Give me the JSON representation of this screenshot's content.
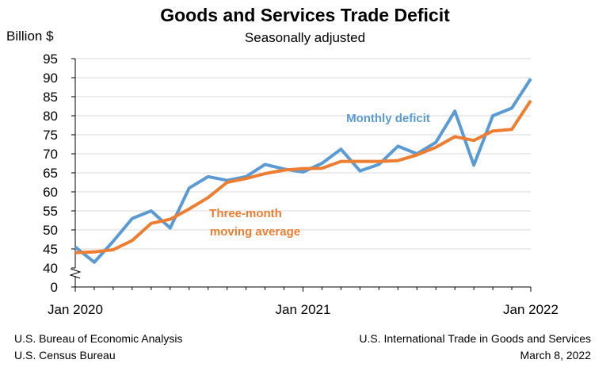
{
  "header": {
    "title": "Goods and Services Trade Deficit",
    "subtitle": "Seasonally adjusted",
    "y_unit": "Billion $"
  },
  "footer": {
    "left_line1": "U.S. Bureau of Economic Analysis",
    "left_line2": "U.S. Census Bureau",
    "right_line1": "U.S. International Trade in Goods and Services",
    "right_line2": "March 8, 2022"
  },
  "colors": {
    "monthly": "#5B9BD5",
    "average": "#ED7D31",
    "grid": "#D9D9D9",
    "axis": "#000000"
  },
  "chart_data": {
    "type": "line",
    "title": "Goods and Services Trade Deficit",
    "subtitle": "Seasonally adjusted",
    "ylabel": "Billion $",
    "y_ticks": [
      "95",
      "90",
      "85",
      "80",
      "75",
      "70",
      "65",
      "60",
      "55",
      "50",
      "45",
      "40",
      "0"
    ],
    "ylim": [
      40,
      95
    ],
    "y_axis_break": true,
    "grid": true,
    "x_tick_labels": [
      {
        "index": 0,
        "label": "Jan 2020"
      },
      {
        "index": 12,
        "label": "Jan 2021"
      },
      {
        "index": 24,
        "label": "Jan 2022"
      }
    ],
    "series": [
      {
        "name": "Monthly deficit",
        "color": "#5B9BD5",
        "values": [
          45.5,
          41.5,
          47.0,
          53.0,
          55.0,
          50.5,
          61.0,
          64.0,
          63.0,
          64.0,
          67.2,
          66.0,
          65.2,
          67.5,
          71.2,
          65.5,
          67.2,
          72.0,
          70.0,
          73.0,
          81.2,
          67.0,
          80.0,
          82.0,
          89.7
        ]
      },
      {
        "name": "Three-month moving average",
        "color": "#ED7D31",
        "values": [
          44.0,
          44.2,
          44.8,
          47.2,
          51.7,
          52.8,
          55.5,
          58.5,
          62.5,
          63.5,
          64.8,
          65.7,
          66.1,
          66.2,
          68.0,
          68.0,
          68.0,
          68.2,
          69.7,
          71.7,
          74.5,
          73.5,
          76.0,
          76.4,
          84.0
        ]
      }
    ],
    "annotations": [
      {
        "text": "Monthly deficit",
        "series": "Monthly deficit"
      },
      {
        "line1": "Three-month",
        "line2": "moving average",
        "series": "Three-month moving average"
      }
    ]
  }
}
